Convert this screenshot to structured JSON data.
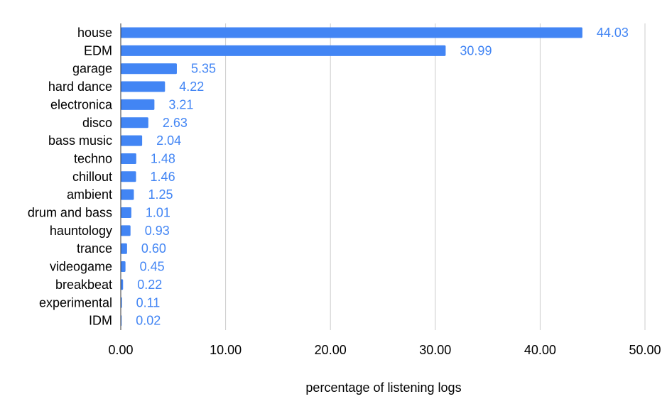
{
  "chart_data": {
    "type": "bar",
    "orientation": "horizontal",
    "categories": [
      "house",
      "EDM",
      "garage",
      "hard dance",
      "electronica",
      "disco",
      "bass music",
      "techno",
      "chillout",
      "ambient",
      "drum and bass",
      "hauntology",
      "trance",
      "videogame",
      "breakbeat",
      "experimental",
      "IDM"
    ],
    "values": [
      44.03,
      30.99,
      5.35,
      4.22,
      3.21,
      2.63,
      2.04,
      1.48,
      1.46,
      1.25,
      1.01,
      0.93,
      0.6,
      0.45,
      0.22,
      0.11,
      0.02
    ],
    "value_labels": [
      "44.03",
      "30.99",
      "5.35",
      "4.22",
      "3.21",
      "2.63",
      "2.04",
      "1.48",
      "1.46",
      "1.25",
      "1.01",
      "0.93",
      "0.60",
      "0.45",
      "0.22",
      "0.11",
      "0.02"
    ],
    "title": "",
    "xlabel": "percentage of listening logs",
    "ylabel": "",
    "xlim": [
      0,
      50
    ],
    "x_ticks": [
      0,
      10,
      20,
      30,
      40,
      50
    ],
    "x_tick_labels": [
      "0.00",
      "10.00",
      "20.00",
      "30.00",
      "40.00",
      "50.00"
    ],
    "grid": true,
    "legend": "none",
    "colors": {
      "bar": "#4285f4",
      "value_label": "#4285f4",
      "grid": "#cccccc",
      "axis": "#333333"
    }
  }
}
